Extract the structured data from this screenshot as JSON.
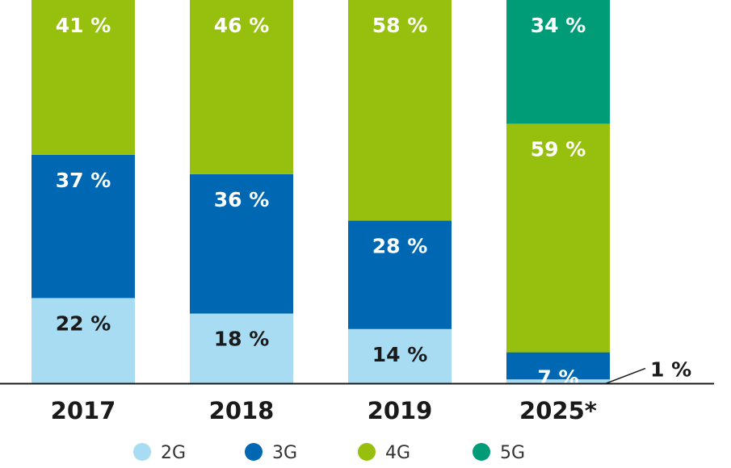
{
  "chart_data": {
    "type": "bar",
    "stacked": true,
    "categories": [
      "2017",
      "2018",
      "2019",
      "2025*"
    ],
    "series": [
      {
        "name": "2G",
        "color": "#a8dcf2",
        "values": [
          22,
          18,
          14,
          1
        ]
      },
      {
        "name": "3G",
        "color": "#0068b3",
        "values": [
          37,
          36,
          28,
          7
        ]
      },
      {
        "name": "4G",
        "color": "#97bf0d",
        "values": [
          41,
          46,
          58,
          59
        ]
      },
      {
        "name": "5G",
        "color": "#009b77",
        "values": [
          0,
          0,
          0,
          34
        ]
      }
    ],
    "value_labels": [
      [
        "22 %",
        "18 %",
        "14 %",
        "1 %"
      ],
      [
        "37 %",
        "36 %",
        "28 %",
        "7 %"
      ],
      [
        "41 %",
        "46 %",
        "58 %",
        "59 %"
      ],
      [
        "",
        "",
        "",
        "34 %"
      ]
    ],
    "label_colors": {
      "2G": "#1a1a1a",
      "3G": "#ffffff",
      "4G": "#ffffff",
      "5G": "#ffffff"
    },
    "callout_color": "#1a1a1a",
    "legend": {
      "placement": "bottom"
    },
    "grid": false
  }
}
